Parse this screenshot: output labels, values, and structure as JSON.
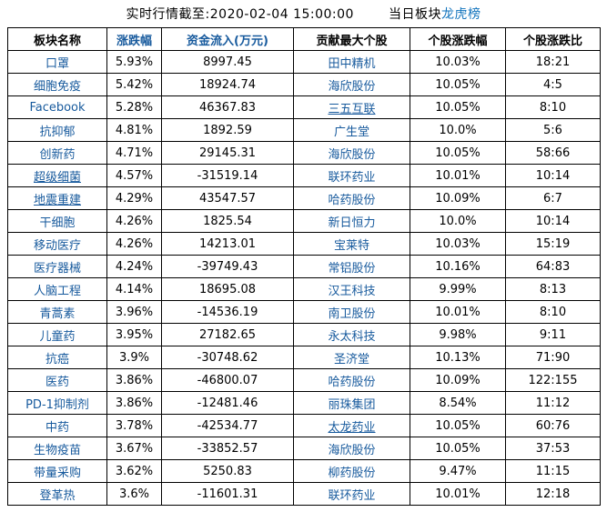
{
  "colors": {
    "link_blue": "#175a9d",
    "title_link_blue": "#1173bd",
    "border": "#000000",
    "background": "#ffffff"
  },
  "title": {
    "timestamp": "实时行情截至:2020-02-04 15:00:00",
    "board_prefix": "当日板块",
    "board_link": "龙虎榜"
  },
  "table": {
    "headers": [
      {
        "label": "板块名称",
        "blue": false
      },
      {
        "label": "涨跌幅",
        "blue": true
      },
      {
        "label": "资金流入(万元)",
        "blue": true
      },
      {
        "label": "贡献最大个股",
        "blue": false
      },
      {
        "label": "个股涨跌幅",
        "blue": false
      },
      {
        "label": "个股涨跌比",
        "blue": false
      }
    ],
    "rows": [
      {
        "sector": "口罩",
        "sector_u": false,
        "change": "5.93%",
        "inflow": "8997.45",
        "stock": "田中精机",
        "stock_u": false,
        "stock_change": "10.03%",
        "ratio": "18:21"
      },
      {
        "sector": "细胞免疫",
        "sector_u": false,
        "change": "5.42%",
        "inflow": "18924.74",
        "stock": "海欣股份",
        "stock_u": false,
        "stock_change": "10.05%",
        "ratio": "4:5"
      },
      {
        "sector": "Facebook",
        "sector_u": false,
        "change": "5.28%",
        "inflow": "46367.83",
        "stock": "三五互联",
        "stock_u": true,
        "stock_change": "10.05%",
        "ratio": "8:10"
      },
      {
        "sector": "抗抑郁",
        "sector_u": false,
        "change": "4.81%",
        "inflow": "1892.59",
        "stock": "广生堂",
        "stock_u": false,
        "stock_change": "10.0%",
        "ratio": "5:6"
      },
      {
        "sector": "创新药",
        "sector_u": false,
        "change": "4.71%",
        "inflow": "29145.31",
        "stock": "海欣股份",
        "stock_u": false,
        "stock_change": "10.05%",
        "ratio": "58:66"
      },
      {
        "sector": "超级细菌",
        "sector_u": true,
        "change": "4.57%",
        "inflow": "-31519.14",
        "stock": "联环药业",
        "stock_u": false,
        "stock_change": "10.01%",
        "ratio": "10:14"
      },
      {
        "sector": "地震重建",
        "sector_u": true,
        "change": "4.29%",
        "inflow": "43547.57",
        "stock": "哈药股份",
        "stock_u": false,
        "stock_change": "10.09%",
        "ratio": "6:7"
      },
      {
        "sector": "干细胞",
        "sector_u": false,
        "change": "4.26%",
        "inflow": "1825.54",
        "stock": "新日恒力",
        "stock_u": false,
        "stock_change": "10.0%",
        "ratio": "10:14"
      },
      {
        "sector": "移动医疗",
        "sector_u": false,
        "change": "4.26%",
        "inflow": "14213.01",
        "stock": "宝莱特",
        "stock_u": false,
        "stock_change": "10.03%",
        "ratio": "15:19"
      },
      {
        "sector": "医疗器械",
        "sector_u": false,
        "change": "4.24%",
        "inflow": "-39749.43",
        "stock": "常铝股份",
        "stock_u": false,
        "stock_change": "10.16%",
        "ratio": "64:83"
      },
      {
        "sector": "人脑工程",
        "sector_u": false,
        "change": "4.14%",
        "inflow": "18695.08",
        "stock": "汉王科技",
        "stock_u": false,
        "stock_change": "9.99%",
        "ratio": "8:13"
      },
      {
        "sector": "青蒿素",
        "sector_u": false,
        "change": "3.96%",
        "inflow": "-14536.19",
        "stock": "南卫股份",
        "stock_u": false,
        "stock_change": "10.01%",
        "ratio": "8:10"
      },
      {
        "sector": "儿童药",
        "sector_u": false,
        "change": "3.95%",
        "inflow": "27182.65",
        "stock": "永太科技",
        "stock_u": false,
        "stock_change": "9.98%",
        "ratio": "9:11"
      },
      {
        "sector": "抗癌",
        "sector_u": false,
        "change": "3.9%",
        "inflow": "-30748.62",
        "stock": "圣济堂",
        "stock_u": false,
        "stock_change": "10.13%",
        "ratio": "71:90"
      },
      {
        "sector": "医药",
        "sector_u": false,
        "change": "3.86%",
        "inflow": "-46800.07",
        "stock": "哈药股份",
        "stock_u": false,
        "stock_change": "10.09%",
        "ratio": "122:155"
      },
      {
        "sector": "PD-1抑制剂",
        "sector_u": false,
        "change": "3.86%",
        "inflow": "-12481.46",
        "stock": "丽珠集团",
        "stock_u": false,
        "stock_change": "8.54%",
        "ratio": "11:12"
      },
      {
        "sector": "中药",
        "sector_u": false,
        "change": "3.78%",
        "inflow": "-42534.77",
        "stock": "太龙药业",
        "stock_u": true,
        "stock_change": "10.05%",
        "ratio": "60:76"
      },
      {
        "sector": "生物疫苗",
        "sector_u": false,
        "change": "3.67%",
        "inflow": "-33852.57",
        "stock": "海欣股份",
        "stock_u": false,
        "stock_change": "10.05%",
        "ratio": "37:53"
      },
      {
        "sector": "带量采购",
        "sector_u": false,
        "change": "3.62%",
        "inflow": "5250.83",
        "stock": "柳药股份",
        "stock_u": false,
        "stock_change": "9.47%",
        "ratio": "11:15"
      },
      {
        "sector": "登革热",
        "sector_u": false,
        "change": "3.6%",
        "inflow": "-11601.31",
        "stock": "联环药业",
        "stock_u": false,
        "stock_change": "10.01%",
        "ratio": "12:18"
      }
    ]
  }
}
